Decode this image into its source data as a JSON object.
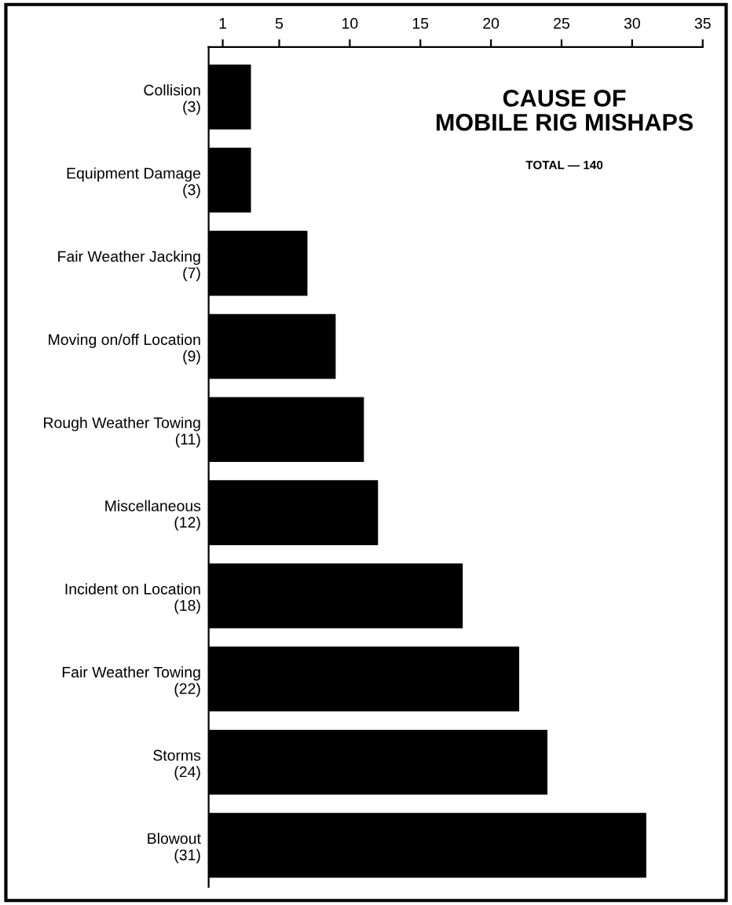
{
  "chart_data": {
    "type": "bar",
    "orientation": "horizontal",
    "title": "CAUSE OF\nMOBILE RIG MISHAPS",
    "subtitle": "TOTAL — 140",
    "categories": [
      "Collision",
      "Equipment Damage",
      "Fair Weather Jacking",
      "Moving on/off Location",
      "Rough Weather Towing",
      "Miscellaneous",
      "Incident on Location",
      "Fair Weather Towing",
      "Storms",
      "Blowout"
    ],
    "values": [
      3,
      3,
      7,
      9,
      11,
      12,
      18,
      22,
      24,
      31
    ],
    "value_labels": [
      "(3)",
      "(3)",
      "(7)",
      "(9)",
      "(11)",
      "(12)",
      "(18)",
      "(22)",
      "(24)",
      "(31)"
    ],
    "color": "#000000",
    "xlim": [
      0,
      35
    ],
    "xticks": [
      1,
      5,
      10,
      15,
      20,
      25,
      30,
      35
    ],
    "grid": false,
    "legend": false
  }
}
